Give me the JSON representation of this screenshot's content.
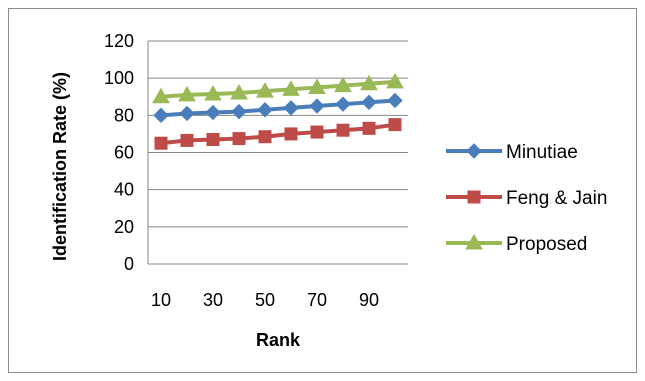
{
  "chart_data": {
    "type": "line",
    "title": "",
    "xlabel": "Rank",
    "ylabel": "Identification Rate (%)",
    "x": [
      10,
      20,
      30,
      40,
      50,
      60,
      70,
      80,
      90,
      100
    ],
    "x_tick_labels": [
      "10",
      "30",
      "50",
      "70",
      "90"
    ],
    "y_ticks": [
      0,
      20,
      40,
      60,
      80,
      100,
      120
    ],
    "ylim": [
      0,
      120
    ],
    "grid": "horizontal",
    "legend_position": "right",
    "series": [
      {
        "name": "Minutiae",
        "color": "#4a7ebb",
        "marker": "diamond",
        "values": [
          80,
          81,
          81.5,
          82,
          83,
          84,
          85,
          86,
          87,
          88
        ]
      },
      {
        "name": "Feng & Jain",
        "color": "#be4b48",
        "marker": "square",
        "values": [
          65,
          66.5,
          67,
          67.5,
          68.5,
          70,
          71,
          72,
          73,
          75
        ]
      },
      {
        "name": "Proposed",
        "color": "#98b954",
        "marker": "triangle",
        "values": [
          90,
          91,
          91.5,
          92,
          93,
          94,
          95,
          96,
          97,
          98
        ]
      }
    ]
  }
}
